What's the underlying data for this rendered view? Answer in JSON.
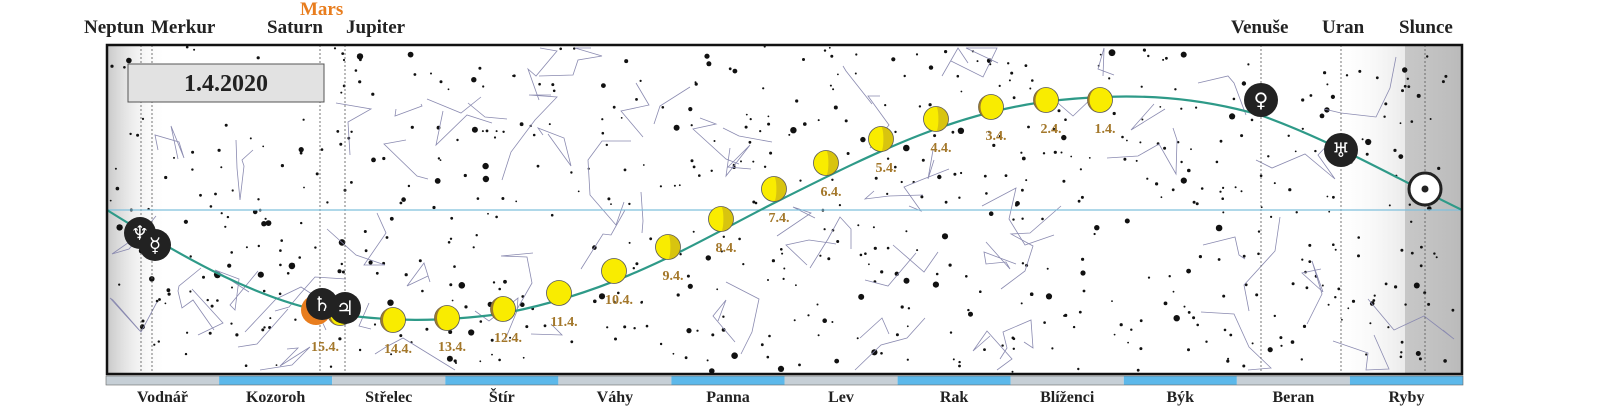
{
  "date_box": "1.4.2020",
  "top_labels": [
    {
      "id": "neptun",
      "text": "Neptun"
    },
    {
      "id": "merkur",
      "text": "Merkur"
    },
    {
      "id": "saturn",
      "text": "Saturn"
    },
    {
      "id": "mars",
      "text": "Mars"
    },
    {
      "id": "jupiter",
      "text": "Jupiter"
    },
    {
      "id": "venuse",
      "text": "Venuše"
    },
    {
      "id": "uran",
      "text": "Uran"
    },
    {
      "id": "slunce",
      "text": "Slunce"
    }
  ],
  "moon_dates": [
    "1.4.",
    "2.4.",
    "3.4.",
    "4.4.",
    "5.4.",
    "6.4.",
    "7.4.",
    "8.4.",
    "9.4.",
    "10.4.",
    "11.4.",
    "12.4.",
    "13.4.",
    "14.4.",
    "15.4."
  ],
  "constellations": [
    "Vodnář",
    "Kozoroh",
    "Střelec",
    "Štír",
    "Váhy",
    "Panna",
    "Lev",
    "Rak",
    "Blíženci",
    "Býk",
    "Beran",
    "Ryby"
  ],
  "planet_symbols": {
    "neptun": "♆",
    "merkur": "☿",
    "saturn": "♄",
    "jupiter": "♃",
    "venuse": "♀",
    "uran": "♅",
    "slunce": "☉"
  },
  "colors": {
    "ecliptic": "#2e9a88",
    "equator": "#7fc0dc",
    "moon": "#f9ec00",
    "moon_shadow": "#9b7a2c",
    "bar_blue": "#5cb8ea",
    "bar_gray": "#c6cfd6",
    "mars": "#e87d1e"
  }
}
